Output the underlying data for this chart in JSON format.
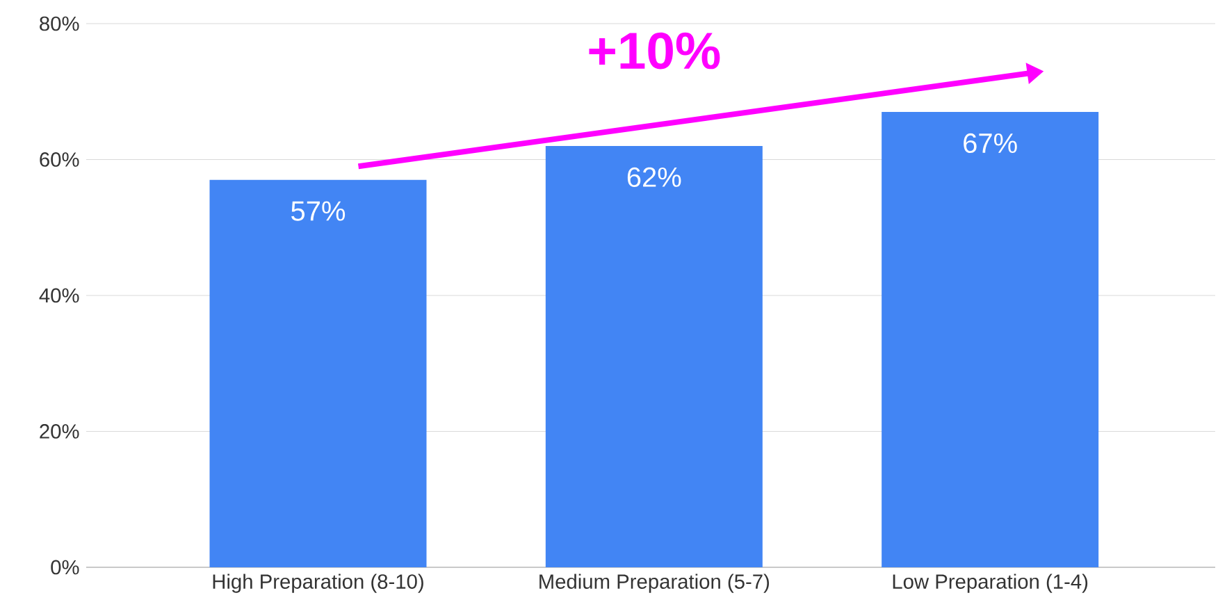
{
  "chart_data": {
    "type": "bar",
    "categories": [
      "High Preparation (8-10)",
      "Medium Preparation (5-7)",
      "Low Preparation (1-4)"
    ],
    "values": [
      57,
      62,
      67
    ],
    "value_labels": [
      "57%",
      "62%",
      "67%"
    ],
    "color": "#4285f4",
    "ylim": [
      0,
      80
    ],
    "yticks": [
      {
        "value": 0,
        "label": "0%"
      },
      {
        "value": 20,
        "label": "20%"
      },
      {
        "value": 40,
        "label": "40%"
      },
      {
        "value": 60,
        "label": "60%"
      },
      {
        "value": 80,
        "label": "80%"
      }
    ],
    "grid": "y",
    "annotations": [
      "+10%"
    ]
  }
}
